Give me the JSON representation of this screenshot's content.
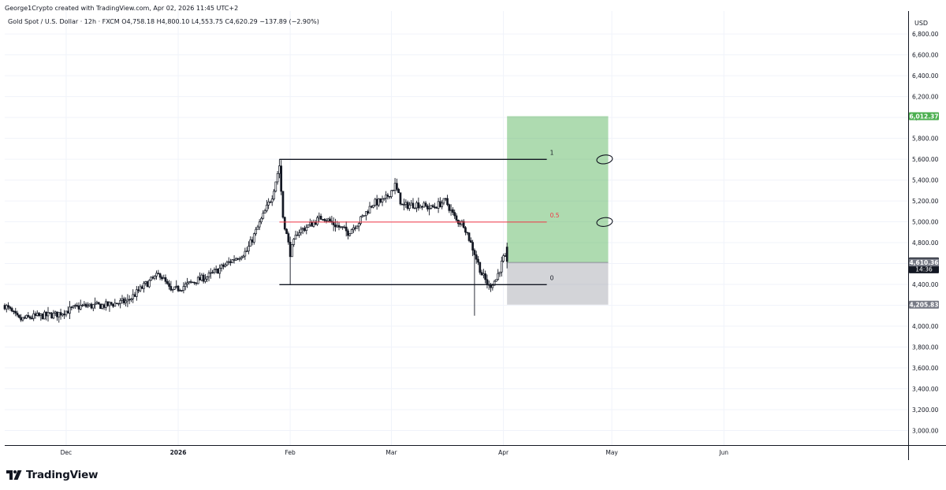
{
  "header": {
    "credit": "George1Crypto created with TradingView.com, Apr 02, 2026 11:45 UTC+2",
    "legend": "Gold Spot / U.S. Dollar · 12h · FXCM  O4,758.18  H4,800.10  L4,553.75  C4,620.29  −137.89 (−2.90%)"
  },
  "brand": {
    "name": "TradingView",
    "logo_icon": "tradingview-logo-icon"
  },
  "colors": {
    "up": "#ffffff",
    "down": "#131722",
    "wick": "#131722",
    "profit": "#4caf50",
    "loss": "#9598a1",
    "midline": "#f23645",
    "level": "#131722"
  },
  "chart_data": {
    "type": "candlestick",
    "symbol": "Gold Spot / U.S. Dollar",
    "interval": "12h",
    "source": "FXCM",
    "currency": "USD",
    "ohlc": {
      "open": 4758.18,
      "high": 4800.1,
      "low": 4553.75,
      "close": 4620.29,
      "change": -137.89,
      "change_pct": -2.9
    },
    "ylim": [
      2860,
      7020
    ],
    "y_ticks": [
      3000,
      3200,
      3400,
      3600,
      3800,
      4000,
      4200,
      4400,
      4600,
      4800,
      5000,
      5200,
      5400,
      5600,
      5800,
      6000,
      6200,
      6400,
      6600,
      6800
    ],
    "y_tick_labels": [
      "3,000.00",
      "3,200.00",
      "3,400.00",
      "3,600.00",
      "3,800.00",
      "4,000.00",
      "4,200.00",
      "4,400.00",
      "4,600.00",
      "4,800.00",
      "5,000.00",
      "5,200.00",
      "5,400.00",
      "5,600.00",
      "5,800.00",
      "6,000.00",
      "6,200.00",
      "6,400.00",
      "6,600.00",
      "6,800.00"
    ],
    "y_axis_unit": "USD",
    "xlim": [
      "2025-11-14",
      "2026-07-22"
    ],
    "x_ticks": [
      {
        "date": "2025-12-01",
        "label": "Dec",
        "bold": false
      },
      {
        "date": "2026-01-01",
        "label": "2026",
        "bold": true
      },
      {
        "date": "2026-02-01",
        "label": "Feb",
        "bold": false
      },
      {
        "date": "2026-03-01",
        "label": "Mar",
        "bold": false
      },
      {
        "date": "2026-04-01",
        "label": "Apr",
        "bold": false
      },
      {
        "date": "2026-05-01",
        "label": "May",
        "bold": false
      },
      {
        "date": "2026-06-01",
        "label": "Jun",
        "bold": false
      }
    ],
    "close_path": [
      [
        "2025-11-14",
        4200
      ],
      [
        "2025-11-18",
        4060
      ],
      [
        "2025-11-22",
        4090
      ],
      [
        "2025-11-28",
        4110
      ],
      [
        "2025-12-05",
        4190
      ],
      [
        "2025-12-12",
        4200
      ],
      [
        "2025-12-18",
        4240
      ],
      [
        "2025-12-23",
        4400
      ],
      [
        "2025-12-27",
        4500
      ],
      [
        "2025-12-30",
        4330
      ],
      [
        "2026-01-05",
        4420
      ],
      [
        "2026-01-10",
        4490
      ],
      [
        "2026-01-15",
        4610
      ],
      [
        "2026-01-20",
        4720
      ],
      [
        "2026-01-24",
        5020
      ],
      [
        "2026-01-27",
        5250
      ],
      [
        "2026-01-29",
        5540
      ],
      [
        "2026-01-30",
        5050
      ],
      [
        "2026-02-01",
        4700
      ],
      [
        "2026-02-03",
        4900
      ],
      [
        "2026-02-06",
        4960
      ],
      [
        "2026-02-10",
        5050
      ],
      [
        "2026-02-13",
        4980
      ],
      [
        "2026-02-17",
        4900
      ],
      [
        "2026-02-20",
        5000
      ],
      [
        "2026-02-24",
        5180
      ],
      [
        "2026-02-27",
        5200
      ],
      [
        "2026-03-02",
        5350
      ],
      [
        "2026-03-04",
        5150
      ],
      [
        "2026-03-08",
        5170
      ],
      [
        "2026-03-12",
        5130
      ],
      [
        "2026-03-16",
        5200
      ],
      [
        "2026-03-19",
        5010
      ],
      [
        "2026-03-21",
        4980
      ],
      [
        "2026-03-24",
        4700
      ],
      [
        "2026-03-26",
        4500
      ],
      [
        "2026-03-28",
        4380
      ],
      [
        "2026-03-30",
        4450
      ],
      [
        "2026-04-01",
        4650
      ],
      [
        "2026-04-02",
        4620.29
      ]
    ],
    "fib_levels": [
      {
        "label": "1",
        "value": 5598
      },
      {
        "label": "0.5",
        "value": 4998
      },
      {
        "label": "0",
        "value": 4398
      }
    ],
    "fib_range": [
      "2026-01-29",
      "2026-04-13"
    ],
    "position": {
      "type": "long",
      "entry": 4610.36,
      "target": 6012.37,
      "stop": 4205.83,
      "start": "2026-04-02",
      "end": "2026-04-30"
    },
    "price_labels": [
      {
        "text": "6,012.37",
        "value": 6012.37,
        "color": "#4caf50"
      },
      {
        "text": "4,620.29",
        "value": 4620.29,
        "color": "#131722",
        "countdown": "14:36"
      },
      {
        "text": "4,610.36",
        "value": 4610.36,
        "color": "#787b86"
      },
      {
        "text": "4,205.83",
        "value": 4205.83,
        "color": "#787b86"
      }
    ],
    "annotations": [
      {
        "shape": "ellipse",
        "date": "2026-04-29",
        "value": 5598
      },
      {
        "shape": "ellipse",
        "date": "2026-04-29",
        "value": 4998
      }
    ]
  }
}
